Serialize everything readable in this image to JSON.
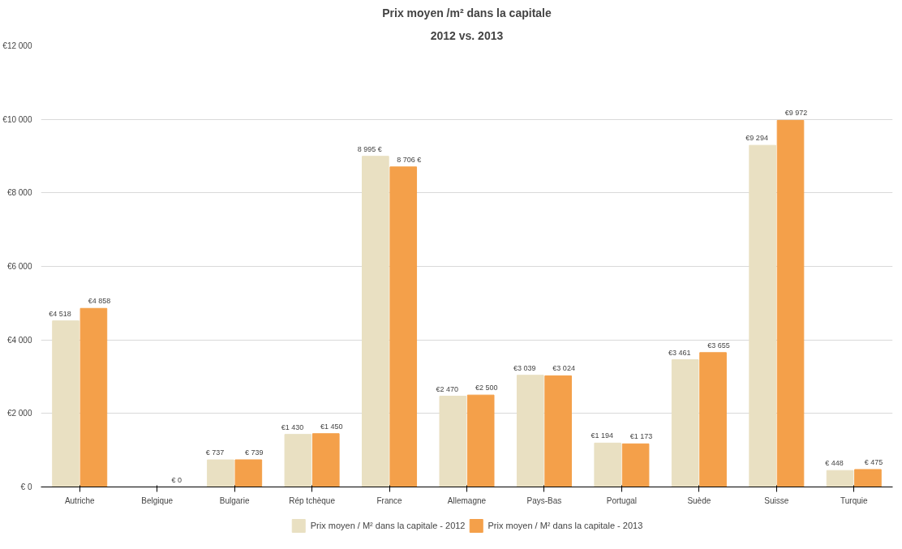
{
  "chart_data": {
    "type": "bar",
    "title": "Prix moyen /m² dans la capitale",
    "subtitle": "2012 vs. 2013",
    "categories": [
      "Autriche",
      "Belgique",
      "Bulgarie",
      "Rép tchèque",
      "France",
      "Allemagne",
      "Pays-Bas",
      "Portugal",
      "Suède",
      "Suisse",
      "Turquie"
    ],
    "series": [
      {
        "name": "Prix moyen / M² dans la capitale - 2012",
        "color": "#e9e0c2",
        "values": [
          4518,
          0,
          737,
          1430,
          8995,
          2470,
          3039,
          1194,
          3461,
          9294,
          448
        ],
        "value_labels": [
          "€4 518",
          null,
          "€ 737",
          "€1 430",
          "8 995 €",
          "€2 470",
          "€3 039",
          "€1 194",
          "€3 461",
          "€9 294",
          "€ 448"
        ]
      },
      {
        "name": "Prix moyen / M² dans la capitale - 2013",
        "color": "#f4a04a",
        "values": [
          4858,
          0,
          739,
          1450,
          8706,
          2500,
          3024,
          1173,
          3655,
          9972,
          475
        ],
        "value_labels": [
          "€4 858",
          "€ 0",
          "€ 739",
          "€1 450",
          "8 706 €",
          "€2 500",
          "€3 024",
          "€1 173",
          "€3 655",
          "€9 972",
          "€ 475"
        ]
      }
    ],
    "ylim": [
      0,
      12000
    ],
    "yticks": [
      {
        "value": 0,
        "label": "€ 0"
      },
      {
        "value": 2000,
        "label": "€2 000"
      },
      {
        "value": 4000,
        "label": "€4 000"
      },
      {
        "value": 6000,
        "label": "€6 000"
      },
      {
        "value": 8000,
        "label": "€8 000"
      },
      {
        "value": 10000,
        "label": "€10 000"
      },
      {
        "value": 12000,
        "label": "€12 000"
      }
    ],
    "grid": "y",
    "legend": "bottom"
  }
}
